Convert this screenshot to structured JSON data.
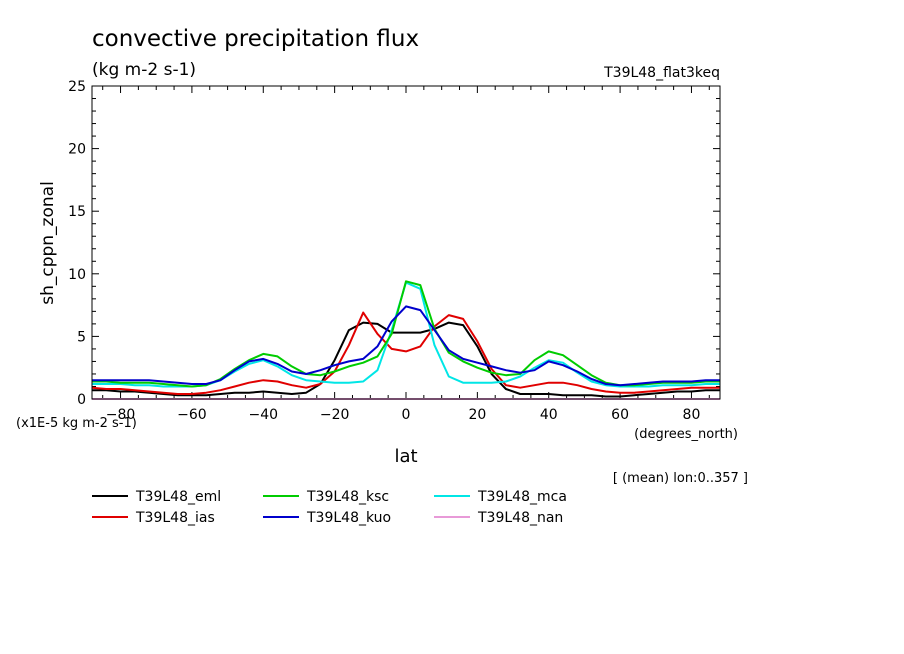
{
  "header": {
    "title": "convective precipitation flux",
    "units": "(kg m-2 s-1)",
    "run_label": "T39L48_flat3keq"
  },
  "footer": {
    "scale_note": "(x1E-5 kg m-2 s-1)",
    "x_units": "(degrees_north)",
    "averaging_note": "[ (mean) lon:0..357 ]"
  },
  "chart_data": {
    "type": "line",
    "title": "convective precipitation flux",
    "subtitle": "(kg m-2 s-1)",
    "xlabel": "lat",
    "ylabel": "sh_cppn_zonal",
    "xlim": [
      -88,
      88
    ],
    "ylim": [
      0,
      25
    ],
    "x_ticks": [
      -80,
      -60,
      -40,
      -20,
      0,
      20,
      40,
      60,
      80
    ],
    "y_ticks": [
      0,
      5,
      10,
      15,
      20,
      25
    ],
    "grid": false,
    "legend_position": "bottom",
    "x": [
      -88,
      -84,
      -80,
      -76,
      -72,
      -68,
      -64,
      -60,
      -56,
      -52,
      -48,
      -44,
      -40,
      -36,
      -32,
      -28,
      -24,
      -20,
      -16,
      -12,
      -8,
      -4,
      0,
      4,
      8,
      12,
      16,
      20,
      24,
      28,
      32,
      36,
      40,
      44,
      48,
      52,
      56,
      60,
      64,
      68,
      72,
      76,
      80,
      84,
      88
    ],
    "series": [
      {
        "name": "T39L48_eml",
        "color": "#000000",
        "values": [
          0.7,
          0.7,
          0.6,
          0.6,
          0.5,
          0.4,
          0.3,
          0.3,
          0.3,
          0.4,
          0.5,
          0.5,
          0.6,
          0.5,
          0.4,
          0.5,
          1.2,
          3.1,
          5.5,
          6.1,
          6.0,
          5.3,
          5.3,
          5.3,
          5.6,
          6.1,
          5.9,
          4.2,
          2.0,
          0.8,
          0.4,
          0.4,
          0.4,
          0.3,
          0.3,
          0.3,
          0.2,
          0.2,
          0.3,
          0.4,
          0.5,
          0.6,
          0.6,
          0.7,
          0.7
        ]
      },
      {
        "name": "T39L48_ias",
        "color": "#e00000",
        "values": [
          0.9,
          0.8,
          0.8,
          0.7,
          0.6,
          0.5,
          0.4,
          0.4,
          0.5,
          0.7,
          1.0,
          1.3,
          1.5,
          1.4,
          1.1,
          0.9,
          1.2,
          2.2,
          4.3,
          6.9,
          5.2,
          4.0,
          3.8,
          4.2,
          5.8,
          6.7,
          6.4,
          4.6,
          2.4,
          1.1,
          0.9,
          1.1,
          1.3,
          1.3,
          1.1,
          0.8,
          0.6,
          0.5,
          0.5,
          0.6,
          0.7,
          0.8,
          0.9,
          0.9,
          0.9
        ]
      },
      {
        "name": "T39L48_ksc",
        "color": "#00cc00",
        "values": [
          1.4,
          1.4,
          1.3,
          1.3,
          1.3,
          1.2,
          1.1,
          1.0,
          1.1,
          1.6,
          2.4,
          3.1,
          3.6,
          3.4,
          2.6,
          2.0,
          1.9,
          2.2,
          2.6,
          2.9,
          3.4,
          5.2,
          9.4,
          9.1,
          5.6,
          3.7,
          3.0,
          2.5,
          2.1,
          1.9,
          2.0,
          3.1,
          3.8,
          3.5,
          2.7,
          1.9,
          1.3,
          1.1,
          1.1,
          1.2,
          1.3,
          1.3,
          1.3,
          1.4,
          1.4
        ]
      },
      {
        "name": "T39L48_kuo",
        "color": "#0000cc",
        "values": [
          1.5,
          1.5,
          1.5,
          1.5,
          1.5,
          1.4,
          1.3,
          1.2,
          1.2,
          1.5,
          2.3,
          3.0,
          3.2,
          2.8,
          2.2,
          2.0,
          2.3,
          2.7,
          3.0,
          3.2,
          4.2,
          6.2,
          7.4,
          7.1,
          5.5,
          3.9,
          3.2,
          2.9,
          2.6,
          2.3,
          2.1,
          2.3,
          3.0,
          2.7,
          2.2,
          1.6,
          1.2,
          1.1,
          1.2,
          1.3,
          1.4,
          1.4,
          1.4,
          1.5,
          1.5
        ]
      },
      {
        "name": "T39L48_mca",
        "color": "#00e6e6",
        "values": [
          1.2,
          1.2,
          1.2,
          1.1,
          1.1,
          1.0,
          1.0,
          1.0,
          1.1,
          1.5,
          2.2,
          2.8,
          3.1,
          2.6,
          1.9,
          1.5,
          1.4,
          1.3,
          1.3,
          1.4,
          2.3,
          5.5,
          9.3,
          8.8,
          4.3,
          1.8,
          1.3,
          1.3,
          1.3,
          1.4,
          1.8,
          2.5,
          3.1,
          2.9,
          2.1,
          1.4,
          1.1,
          1.0,
          1.0,
          1.0,
          1.1,
          1.1,
          1.1,
          1.2,
          1.2
        ]
      },
      {
        "name": "T39L48_nan",
        "color": "#e89ad8",
        "values": [
          0,
          0,
          0,
          0,
          0,
          0,
          0,
          0,
          0,
          0,
          0,
          0,
          0,
          0,
          0,
          0,
          0,
          0,
          0,
          0,
          0,
          0,
          0,
          0,
          0,
          0,
          0,
          0,
          0,
          0,
          0,
          0,
          0,
          0,
          0,
          0,
          0,
          0,
          0,
          0,
          0,
          0,
          0,
          0,
          0
        ]
      }
    ]
  }
}
